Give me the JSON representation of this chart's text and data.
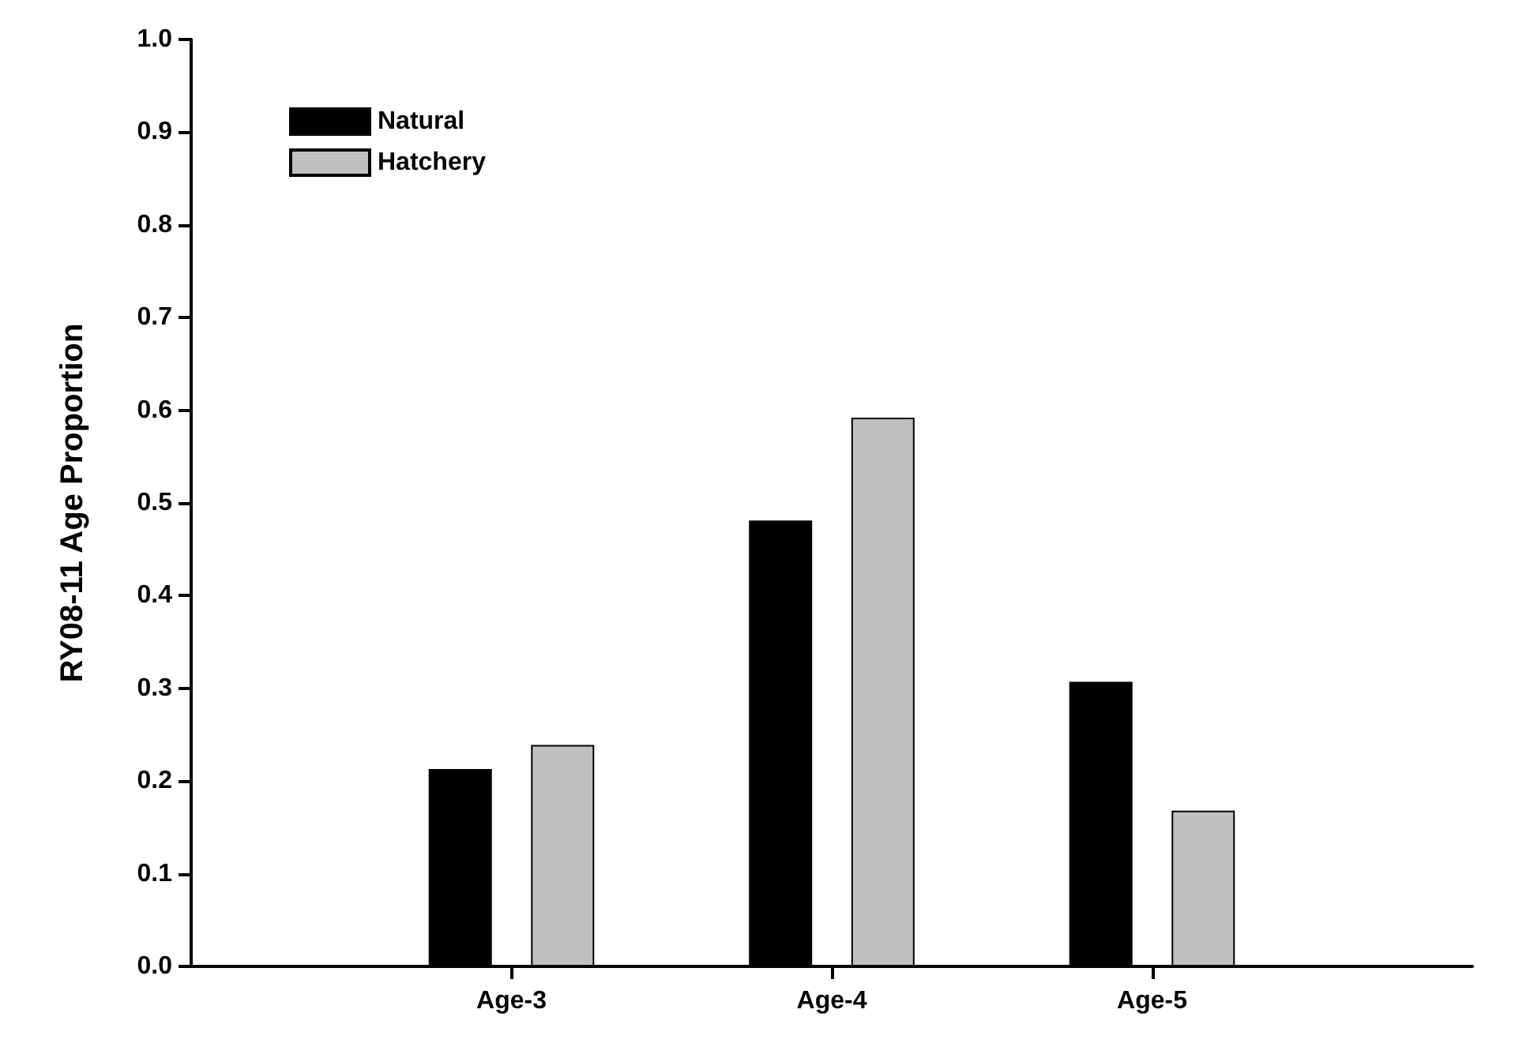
{
  "chart_data": {
    "type": "bar",
    "ylabel": "RY08-11 Age Proportion",
    "categories": [
      null,
      "Age-3",
      "Age-4",
      "Age-5",
      null
    ],
    "series": [
      {
        "name": "Natural",
        "color": "#000000",
        "values": [
          null,
          0.213,
          0.481,
          0.307,
          null
        ]
      },
      {
        "name": "Hatchery",
        "color": "#c0c0c0",
        "values": [
          null,
          0.239,
          0.592,
          0.168,
          null
        ]
      }
    ],
    "ylim": [
      0,
      1
    ],
    "yticks": [
      {
        "value": 0,
        "label": "0.0"
      },
      {
        "value": 0.1,
        "label": "0.1"
      },
      {
        "value": 0.2,
        "label": "0.2"
      },
      {
        "value": 0.3,
        "label": "0.3"
      },
      {
        "value": 0.4,
        "label": "0.4"
      },
      {
        "value": 0.5,
        "label": "0.5"
      },
      {
        "value": 0.6,
        "label": "0.6"
      },
      {
        "value": 0.7,
        "label": "0.7"
      },
      {
        "value": 0.8,
        "label": "0.8"
      },
      {
        "value": 0.9,
        "label": "0.9"
      },
      {
        "value": 1,
        "label": "1.0"
      }
    ],
    "grid": false,
    "legend": "top left"
  }
}
